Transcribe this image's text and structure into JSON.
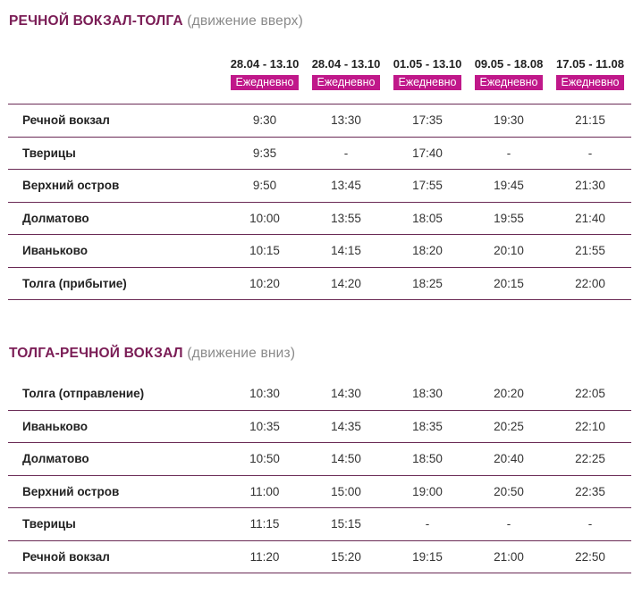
{
  "section1": {
    "title": "РЕЧНОЙ ВОКЗАЛ-ТОЛГА",
    "subtitle": "(движение вверх)",
    "columns": [
      {
        "range": "28.04 - 13.10",
        "badge": "Ежедневно"
      },
      {
        "range": "28.04 - 13.10",
        "badge": "Ежедневно"
      },
      {
        "range": "01.05 - 13.10",
        "badge": "Ежедневно"
      },
      {
        "range": "09.05 - 18.08",
        "badge": "Ежедневно"
      },
      {
        "range": "17.05 - 11.08",
        "badge": "Ежедневно"
      }
    ],
    "rows": [
      {
        "stop": "Речной вокзал",
        "times": [
          "9:30",
          "13:30",
          "17:35",
          "19:30",
          "21:15"
        ]
      },
      {
        "stop": "Тверицы",
        "times": [
          "9:35",
          "-",
          "17:40",
          "-",
          "-"
        ]
      },
      {
        "stop": "Верхний остров",
        "times": [
          "9:50",
          "13:45",
          "17:55",
          "19:45",
          "21:30"
        ]
      },
      {
        "stop": "Долматово",
        "times": [
          "10:00",
          "13:55",
          "18:05",
          "19:55",
          "21:40"
        ]
      },
      {
        "stop": "Иваньково",
        "times": [
          "10:15",
          "14:15",
          "18:20",
          "20:10",
          "21:55"
        ]
      },
      {
        "stop": "Толга (прибытие)",
        "times": [
          "10:20",
          "14:20",
          "18:25",
          "20:15",
          "22:00"
        ]
      }
    ]
  },
  "section2": {
    "title": "ТОЛГА-РЕЧНОЙ ВОКЗАЛ",
    "subtitle": "(движение вниз)",
    "rows": [
      {
        "stop": "Толга (отправление)",
        "times": [
          "10:30",
          "14:30",
          "18:30",
          "20:20",
          "22:05"
        ]
      },
      {
        "stop": "Иваньково",
        "times": [
          "10:35",
          "14:35",
          "18:35",
          "20:25",
          "22:10"
        ]
      },
      {
        "stop": "Долматово",
        "times": [
          "10:50",
          "14:50",
          "18:50",
          "20:40",
          "22:25"
        ]
      },
      {
        "stop": "Верхний остров",
        "times": [
          "11:00",
          "15:00",
          "19:00",
          "20:50",
          "22:35"
        ]
      },
      {
        "stop": "Тверицы",
        "times": [
          "11:15",
          "15:15",
          "-",
          "-",
          "-"
        ]
      },
      {
        "stop": "Речной вокзал",
        "times": [
          "11:20",
          "15:20",
          "19:15",
          "21:00",
          "22:50"
        ]
      }
    ]
  },
  "colors": {
    "accent": "#7a1c55",
    "badge": "#c0188a",
    "muted": "#8a8a8a"
  }
}
